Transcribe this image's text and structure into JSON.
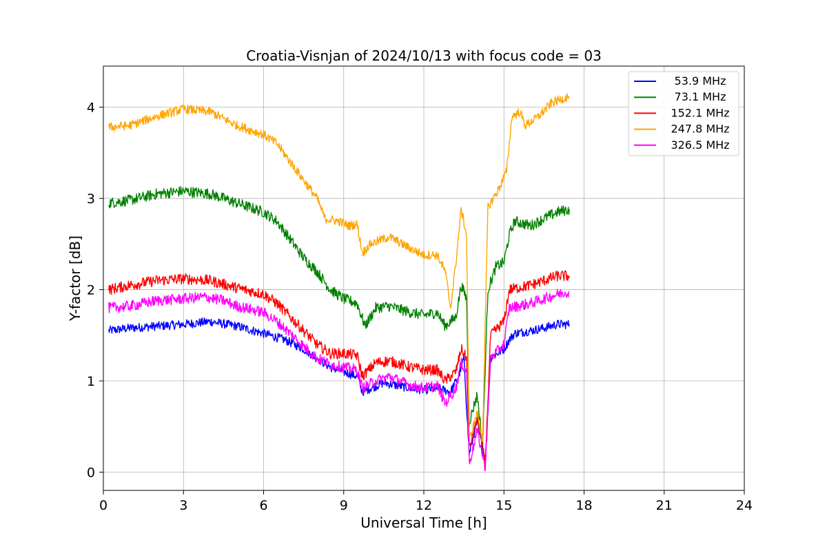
{
  "chart_data": {
    "type": "line",
    "title": "Croatia-Visnjan of 2024/10/13 with focus code = 03",
    "xlabel": "Universal Time [h]",
    "ylabel": "Y-factor [dB]",
    "xlim": [
      0,
      24
    ],
    "ylim": [
      -0.2,
      4.45
    ],
    "xticks": [
      0,
      3,
      6,
      9,
      12,
      15,
      18,
      21,
      24
    ],
    "yticks": [
      0,
      1,
      2,
      3,
      4
    ],
    "grid": true,
    "legend_position": "top-right",
    "series": [
      {
        "name": "53.9 MHz",
        "color": "#0000ff",
        "noise": 0.05,
        "points": [
          [
            0.2,
            1.55
          ],
          [
            1,
            1.58
          ],
          [
            2,
            1.6
          ],
          [
            3,
            1.62
          ],
          [
            4,
            1.65
          ],
          [
            5,
            1.6
          ],
          [
            6,
            1.52
          ],
          [
            6.8,
            1.45
          ],
          [
            7.5,
            1.35
          ],
          [
            8,
            1.25
          ],
          [
            8.5,
            1.15
          ],
          [
            9,
            1.1
          ],
          [
            9.5,
            1.05
          ],
          [
            9.7,
            0.88
          ],
          [
            10,
            0.92
          ],
          [
            10.5,
            0.98
          ],
          [
            11,
            0.95
          ],
          [
            11.5,
            0.92
          ],
          [
            12,
            0.9
          ],
          [
            12.5,
            0.92
          ],
          [
            13,
            0.88
          ],
          [
            13.3,
            1.05
          ],
          [
            13.5,
            1.25
          ],
          [
            13.7,
            0.2
          ],
          [
            14,
            0.55
          ],
          [
            14.3,
            0.1
          ],
          [
            14.5,
            1.25
          ],
          [
            15,
            1.35
          ],
          [
            15.2,
            1.45
          ],
          [
            15.4,
            1.52
          ],
          [
            16,
            1.55
          ],
          [
            16.5,
            1.58
          ],
          [
            17,
            1.62
          ],
          [
            17.45,
            1.62
          ]
        ]
      },
      {
        "name": "73.1 MHz",
        "color": "#008000",
        "noise": 0.06,
        "points": [
          [
            0.2,
            2.95
          ],
          [
            1,
            2.98
          ],
          [
            2,
            3.05
          ],
          [
            3,
            3.08
          ],
          [
            4,
            3.05
          ],
          [
            5,
            2.95
          ],
          [
            6,
            2.85
          ],
          [
            6.5,
            2.75
          ],
          [
            7,
            2.55
          ],
          [
            7.5,
            2.35
          ],
          [
            8,
            2.2
          ],
          [
            8.5,
            2.0
          ],
          [
            9,
            1.9
          ],
          [
            9.5,
            1.85
          ],
          [
            9.8,
            1.6
          ],
          [
            10.2,
            1.8
          ],
          [
            10.7,
            1.82
          ],
          [
            11.5,
            1.75
          ],
          [
            12,
            1.72
          ],
          [
            12.5,
            1.75
          ],
          [
            12.8,
            1.6
          ],
          [
            13.2,
            1.7
          ],
          [
            13.4,
            2.05
          ],
          [
            13.6,
            1.9
          ],
          [
            13.7,
            0.55
          ],
          [
            14,
            0.85
          ],
          [
            14.2,
            0.3
          ],
          [
            14.4,
            2.0
          ],
          [
            14.7,
            2.25
          ],
          [
            15,
            2.3
          ],
          [
            15.2,
            2.6
          ],
          [
            15.4,
            2.75
          ],
          [
            16,
            2.7
          ],
          [
            16.5,
            2.78
          ],
          [
            17,
            2.85
          ],
          [
            17.45,
            2.88
          ]
        ]
      },
      {
        "name": "152.1 MHz",
        "color": "#ff0000",
        "noise": 0.06,
        "points": [
          [
            0.2,
            2.0
          ],
          [
            1,
            2.05
          ],
          [
            2,
            2.1
          ],
          [
            3,
            2.12
          ],
          [
            4,
            2.1
          ],
          [
            5,
            2.02
          ],
          [
            6,
            1.95
          ],
          [
            6.5,
            1.85
          ],
          [
            7,
            1.7
          ],
          [
            7.5,
            1.55
          ],
          [
            8,
            1.4
          ],
          [
            8.5,
            1.3
          ],
          [
            9,
            1.3
          ],
          [
            9.5,
            1.28
          ],
          [
            9.7,
            1.05
          ],
          [
            10.2,
            1.2
          ],
          [
            10.7,
            1.22
          ],
          [
            11.5,
            1.15
          ],
          [
            12,
            1.12
          ],
          [
            12.5,
            1.12
          ],
          [
            12.8,
            1.0
          ],
          [
            13.2,
            1.1
          ],
          [
            13.4,
            1.35
          ],
          [
            13.6,
            1.25
          ],
          [
            13.7,
            0.25
          ],
          [
            14,
            0.6
          ],
          [
            14.3,
            0.1
          ],
          [
            14.5,
            1.5
          ],
          [
            15,
            1.65
          ],
          [
            15.2,
            2.0
          ],
          [
            16,
            2.05
          ],
          [
            16.5,
            2.1
          ],
          [
            17,
            2.15
          ],
          [
            17.45,
            2.15
          ]
        ]
      },
      {
        "name": "247.8 MHz",
        "color": "#ffa500",
        "noise": 0.05,
        "points": [
          [
            0.2,
            3.78
          ],
          [
            1,
            3.8
          ],
          [
            2,
            3.9
          ],
          [
            3,
            3.98
          ],
          [
            4,
            3.95
          ],
          [
            5,
            3.8
          ],
          [
            6,
            3.7
          ],
          [
            6.5,
            3.6
          ],
          [
            7,
            3.4
          ],
          [
            7.5,
            3.2
          ],
          [
            8,
            3.0
          ],
          [
            8.3,
            2.78
          ],
          [
            8.8,
            2.75
          ],
          [
            9.2,
            2.7
          ],
          [
            9.5,
            2.72
          ],
          [
            9.7,
            2.4
          ],
          [
            10,
            2.5
          ],
          [
            10.7,
            2.58
          ],
          [
            11.5,
            2.45
          ],
          [
            12,
            2.38
          ],
          [
            12.5,
            2.38
          ],
          [
            12.8,
            2.2
          ],
          [
            13.0,
            1.8
          ],
          [
            13.2,
            2.3
          ],
          [
            13.4,
            2.88
          ],
          [
            13.6,
            2.6
          ],
          [
            13.7,
            0.35
          ],
          [
            14,
            0.65
          ],
          [
            14.2,
            0.35
          ],
          [
            14.4,
            2.9
          ],
          [
            14.8,
            3.1
          ],
          [
            15.1,
            3.3
          ],
          [
            15.3,
            3.9
          ],
          [
            15.6,
            3.95
          ],
          [
            15.8,
            3.8
          ],
          [
            16.3,
            3.9
          ],
          [
            16.8,
            4.05
          ],
          [
            17.45,
            4.12
          ]
        ]
      },
      {
        "name": "326.5 MHz",
        "color": "#ff00ff",
        "noise": 0.06,
        "points": [
          [
            0.2,
            1.8
          ],
          [
            1,
            1.82
          ],
          [
            2,
            1.88
          ],
          [
            3,
            1.9
          ],
          [
            3.8,
            1.92
          ],
          [
            4.5,
            1.88
          ],
          [
            5,
            1.82
          ],
          [
            6,
            1.75
          ],
          [
            6.5,
            1.65
          ],
          [
            7,
            1.52
          ],
          [
            7.5,
            1.38
          ],
          [
            8,
            1.25
          ],
          [
            8.5,
            1.18
          ],
          [
            9,
            1.15
          ],
          [
            9.5,
            1.12
          ],
          [
            9.7,
            0.92
          ],
          [
            10.2,
            1.0
          ],
          [
            10.7,
            1.05
          ],
          [
            11.5,
            0.95
          ],
          [
            12,
            0.92
          ],
          [
            12.5,
            0.95
          ],
          [
            12.8,
            0.75
          ],
          [
            13.2,
            0.92
          ],
          [
            13.4,
            1.2
          ],
          [
            13.6,
            1.1
          ],
          [
            13.7,
            0.1
          ],
          [
            14,
            0.45
          ],
          [
            14.3,
            0.05
          ],
          [
            14.5,
            1.25
          ],
          [
            15,
            1.4
          ],
          [
            15.2,
            1.8
          ],
          [
            16,
            1.85
          ],
          [
            16.5,
            1.9
          ],
          [
            17,
            1.95
          ],
          [
            17.45,
            1.98
          ]
        ]
      }
    ]
  }
}
